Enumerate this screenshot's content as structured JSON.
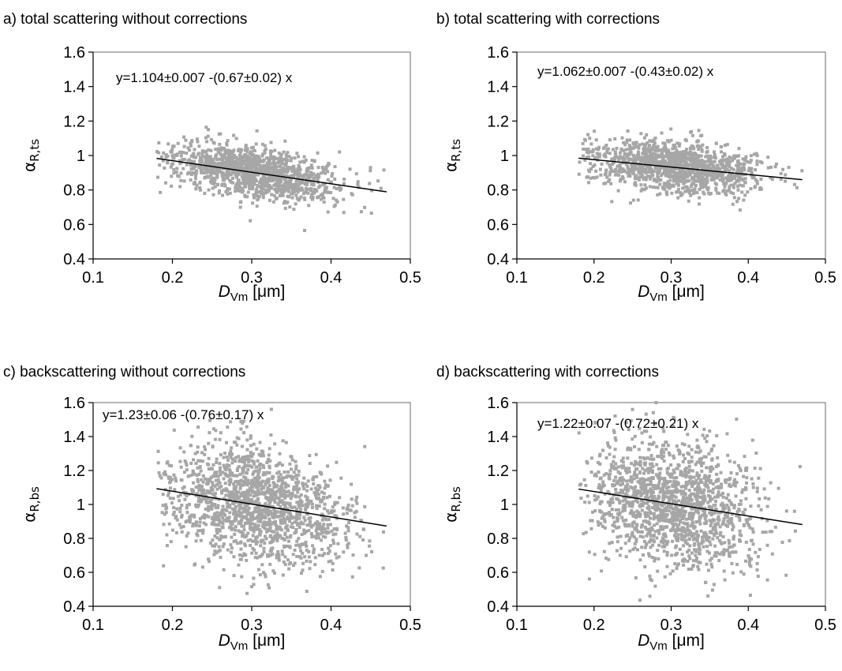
{
  "colors": {
    "points": "#a6a6a6",
    "fit": "#000000",
    "axis": "#000000"
  },
  "chart_data": [
    {
      "type": "scatter",
      "title": "a) total scattering without corrections",
      "equation": "y=1.104±0.007 -(0.67±0.02) x",
      "fit": {
        "intercept": 1.104,
        "slope": -0.67,
        "x_range": [
          0.18,
          0.47
        ]
      },
      "ylabel": {
        "main": "α",
        "sub": "R,ts"
      },
      "xlabel": {
        "main": "D",
        "sub": "Vm",
        "unit": "[μm]"
      },
      "xlim": [
        0.1,
        0.5
      ],
      "ylim": [
        0.4,
        1.6
      ],
      "xticks": [
        "0.1",
        "0.2",
        "0.3",
        "0.4",
        "0.5"
      ],
      "yticks": [
        "0.4",
        "0.6",
        "0.8",
        "1",
        "1.2",
        "1.4",
        "1.6"
      ],
      "cloud": {
        "n": 1300,
        "x_center": 0.305,
        "x_spread": 0.055,
        "x_range": [
          0.18,
          0.47
        ],
        "y_spread": 0.07,
        "y_clip": [
          0.45,
          1.27
        ]
      },
      "grid": false,
      "legend": "none"
    },
    {
      "type": "scatter",
      "title": "b) total scattering with corrections",
      "equation": "y=1.062±0.007 -(0.43±0.02) x",
      "fit": {
        "intercept": 1.062,
        "slope": -0.43,
        "x_range": [
          0.18,
          0.47
        ]
      },
      "ylabel": {
        "main": "α",
        "sub": "R,ts"
      },
      "xlabel": {
        "main": "D",
        "sub": "Vm",
        "unit": "[μm]"
      },
      "xlim": [
        0.1,
        0.5
      ],
      "ylim": [
        0.4,
        1.6
      ],
      "xticks": [
        "0.1",
        "0.2",
        "0.3",
        "0.4",
        "0.5"
      ],
      "yticks": [
        "0.4",
        "0.6",
        "0.8",
        "1",
        "1.2",
        "1.4",
        "1.6"
      ],
      "cloud": {
        "n": 1300,
        "x_center": 0.305,
        "x_spread": 0.055,
        "x_range": [
          0.18,
          0.47
        ],
        "y_spread": 0.07,
        "y_clip": [
          0.54,
          1.27
        ]
      },
      "grid": false,
      "legend": "none"
    },
    {
      "type": "scatter",
      "title": "c) backscattering without corrections",
      "equation": "y=1.23±0.06 -(0.76±0.17) x",
      "fit": {
        "intercept": 1.23,
        "slope": -0.76,
        "x_range": [
          0.18,
          0.47
        ]
      },
      "ylabel": {
        "main": "α",
        "sub": "R,bs"
      },
      "xlabel": {
        "main": "D",
        "sub": "Vm",
        "unit": "[μm]"
      },
      "xlim": [
        0.1,
        0.5
      ],
      "ylim": [
        0.4,
        1.6
      ],
      "xticks": [
        "0.1",
        "0.2",
        "0.3",
        "0.4",
        "0.5"
      ],
      "yticks": [
        "0.4",
        "0.6",
        "0.8",
        "1",
        "1.2",
        "1.4",
        "1.6"
      ],
      "cloud": {
        "n": 1600,
        "x_center": 0.305,
        "x_spread": 0.055,
        "x_range": [
          0.18,
          0.47
        ],
        "y_spread": 0.17,
        "y_clip": [
          0.4,
          1.6
        ]
      },
      "grid": false,
      "legend": "none"
    },
    {
      "type": "scatter",
      "title": "d) backscattering with corrections",
      "equation": "y=1.22±0.07 -(0.72±0.21) x",
      "fit": {
        "intercept": 1.22,
        "slope": -0.72,
        "x_range": [
          0.18,
          0.47
        ]
      },
      "ylabel": {
        "main": "α",
        "sub": "R,bs"
      },
      "xlabel": {
        "main": "D",
        "sub": "Vm",
        "unit": "[μm]"
      },
      "xlim": [
        0.1,
        0.5
      ],
      "ylim": [
        0.4,
        1.6
      ],
      "xticks": [
        "0.1",
        "0.2",
        "0.3",
        "0.4",
        "0.5"
      ],
      "yticks": [
        "0.4",
        "0.6",
        "0.8",
        "1",
        "1.2",
        "1.4",
        "1.6"
      ],
      "cloud": {
        "n": 1600,
        "x_center": 0.305,
        "x_spread": 0.055,
        "x_range": [
          0.18,
          0.47
        ],
        "y_spread": 0.18,
        "y_clip": [
          0.4,
          1.6
        ]
      },
      "grid": false,
      "legend": "none"
    }
  ]
}
